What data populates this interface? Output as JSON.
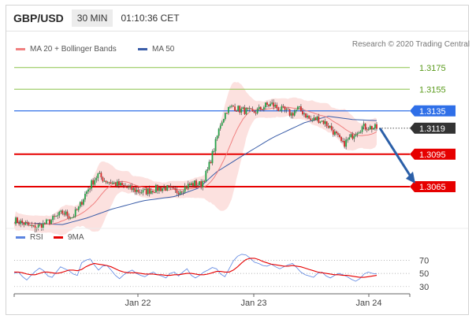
{
  "header": {
    "pair": "GBP/USD",
    "timeframe": "30 MIN",
    "clock": "01:10:36 CET"
  },
  "credit": "Research © 2020 Trading Central",
  "colors": {
    "ma20": "#f08080",
    "ma50": "#3a5da8",
    "bb_fill": "#fbd9d7",
    "resistance": "#8bc34a",
    "resistance_text": "#5b9b1d",
    "pivot": "#2f6fe8",
    "support": "#e60000",
    "current": "#333333",
    "arrow": "#2b5fa8",
    "rsi": "#5b84e0",
    "ma9": "#e60000",
    "candle_up": "#24a24a",
    "candle_down": "#d22b2b"
  },
  "legend": {
    "ma20_label": "MA 20 + Bollinger Bands",
    "ma50_label": "MA 50",
    "rsi_label": "RSI",
    "ma9_label": "9MA"
  },
  "chart_data": [
    {
      "type": "candlestick",
      "title": "GBP/USD",
      "timeframe": "30 MIN",
      "xlabel": "",
      "ylabel": "",
      "x_ticks": [
        "Jan 22",
        "Jan 23",
        "Jan 24"
      ],
      "ylim": [
        1.3025,
        1.3185
      ],
      "series": [
        {
          "name": "MA 20 + Bollinger Bands",
          "kind": "line+band"
        },
        {
          "name": "MA 50",
          "kind": "line"
        }
      ],
      "price_levels": [
        {
          "label": "1.3175",
          "value": 1.3175,
          "role": "resistance"
        },
        {
          "label": "1.3155",
          "value": 1.3155,
          "role": "resistance"
        },
        {
          "label": "1.3135",
          "value": 1.3135,
          "role": "pivot"
        },
        {
          "label": "1.3119",
          "value": 1.3119,
          "role": "current"
        },
        {
          "label": "1.3095",
          "value": 1.3095,
          "role": "support"
        },
        {
          "label": "1.3065",
          "value": 1.3065,
          "role": "support"
        }
      ],
      "close_path": [
        [
          0,
          1.3034
        ],
        [
          6,
          1.3031
        ],
        [
          12,
          1.3027
        ],
        [
          18,
          1.303
        ],
        [
          24,
          1.3035
        ],
        [
          30,
          1.3041
        ],
        [
          36,
          1.3037
        ],
        [
          40,
          1.3045
        ],
        [
          44,
          1.3058
        ],
        [
          48,
          1.3068
        ],
        [
          52,
          1.3076
        ],
        [
          56,
          1.3071
        ],
        [
          60,
          1.3069
        ],
        [
          66,
          1.3066
        ],
        [
          72,
          1.3063
        ],
        [
          80,
          1.306
        ],
        [
          88,
          1.3063
        ],
        [
          94,
          1.3064
        ],
        [
          100,
          1.306
        ],
        [
          104,
          1.3063
        ],
        [
          108,
          1.3066
        ],
        [
          112,
          1.3068
        ],
        [
          116,
          1.3067
        ],
        [
          120,
          1.308
        ],
        [
          124,
          1.31
        ],
        [
          128,
          1.3123
        ],
        [
          132,
          1.3136
        ],
        [
          136,
          1.3139
        ],
        [
          140,
          1.3136
        ],
        [
          144,
          1.3135
        ],
        [
          148,
          1.3133
        ],
        [
          152,
          1.3136
        ],
        [
          156,
          1.314
        ],
        [
          160,
          1.3141
        ],
        [
          164,
          1.3137
        ],
        [
          168,
          1.3135
        ],
        [
          172,
          1.3132
        ],
        [
          176,
          1.3137
        ],
        [
          180,
          1.3133
        ],
        [
          184,
          1.3126
        ],
        [
          188,
          1.3128
        ],
        [
          192,
          1.3125
        ],
        [
          196,
          1.312
        ],
        [
          200,
          1.3112
        ],
        [
          204,
          1.3104
        ],
        [
          208,
          1.3109
        ],
        [
          212,
          1.3116
        ],
        [
          216,
          1.312
        ],
        [
          220,
          1.312
        ],
        [
          225,
          1.3119
        ]
      ],
      "ma50_path": [
        [
          0,
          1.3032
        ],
        [
          30,
          1.303
        ],
        [
          45,
          1.3036
        ],
        [
          60,
          1.3044
        ],
        [
          80,
          1.3052
        ],
        [
          100,
          1.3056
        ],
        [
          115,
          1.3064
        ],
        [
          125,
          1.3078
        ],
        [
          140,
          1.3092
        ],
        [
          160,
          1.311
        ],
        [
          180,
          1.3124
        ],
        [
          195,
          1.313
        ],
        [
          210,
          1.3127
        ],
        [
          225,
          1.3126
        ]
      ],
      "forecast_arrow": {
        "from": [
          227,
          1.3119
        ],
        "to": [
          247,
          1.3068
        ]
      }
    },
    {
      "type": "line",
      "title": "",
      "y_ticks": [
        70,
        50,
        30
      ],
      "ylim": [
        25,
        80
      ],
      "x_ticks": [
        "Jan 22",
        "Jan 23",
        "Jan 24"
      ],
      "series": [
        {
          "name": "RSI",
          "values": [
            50,
            52,
            45,
            40,
            47,
            53,
            58,
            54,
            46,
            44,
            52,
            60,
            57,
            54,
            49,
            47,
            66,
            70,
            72,
            63,
            55,
            61,
            62,
            55,
            47,
            42,
            48,
            52,
            55,
            50,
            47,
            45,
            49,
            52,
            48,
            46,
            43,
            50,
            52,
            46,
            52,
            57,
            47,
            43,
            47,
            52,
            55,
            59,
            57,
            49,
            45,
            57,
            69,
            76,
            79,
            78,
            73,
            67,
            65,
            62,
            61,
            64,
            60,
            57,
            60,
            63,
            65,
            59,
            52,
            48,
            46,
            44,
            50,
            52,
            46,
            43,
            47,
            50,
            48,
            45,
            41,
            38,
            42,
            49,
            52,
            50,
            49
          ]
        },
        {
          "name": "9MA",
          "values": [
            52,
            52,
            51,
            49,
            48,
            48,
            50,
            52,
            52,
            51,
            50,
            51,
            53,
            55,
            55,
            54,
            56,
            60,
            63,
            65,
            64,
            63,
            62,
            60,
            57,
            54,
            52,
            51,
            51,
            51,
            50,
            49,
            49,
            49,
            48,
            48,
            47,
            47,
            48,
            48,
            49,
            50,
            50,
            49,
            48,
            48,
            49,
            51,
            53,
            53,
            52,
            52,
            55,
            60,
            66,
            71,
            73,
            73,
            71,
            68,
            66,
            64,
            63,
            62,
            61,
            61,
            62,
            61,
            60,
            58,
            56,
            54,
            52,
            51,
            50,
            49,
            48,
            48,
            47,
            47,
            46,
            45,
            44,
            44,
            45,
            46,
            47
          ]
        }
      ]
    }
  ]
}
